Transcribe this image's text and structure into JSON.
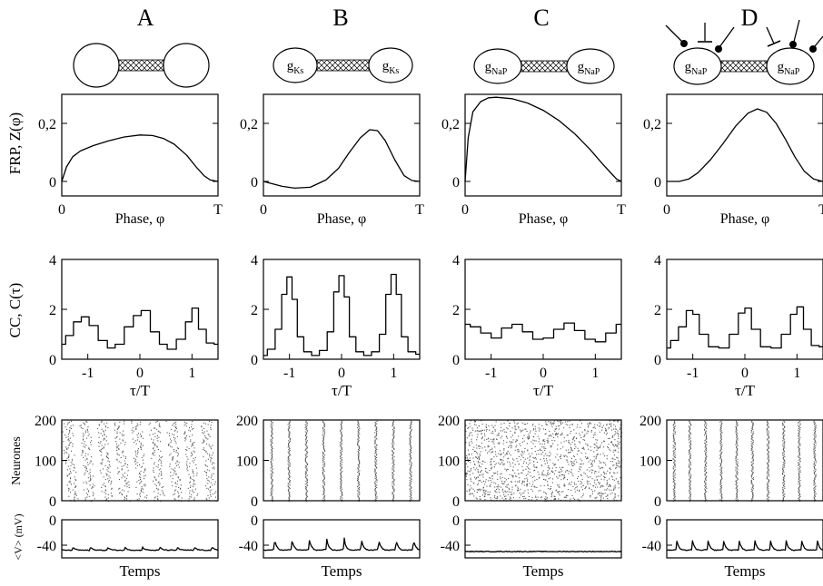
{
  "figure": {
    "panel_letters": [
      "A",
      "B",
      "C",
      "D"
    ],
    "schematic_labels": [
      "",
      "g",
      "g",
      "g"
    ],
    "schematic_subscripts": [
      "",
      "Ks",
      "NaP",
      "NaP"
    ]
  },
  "chart_data": [
    {
      "name": "FRP",
      "type": "line",
      "ylabel": "FRP,  Z(φ)",
      "xlabel": "Phase, φ",
      "xticks": [
        "0",
        "T"
      ],
      "yticks": [
        "0",
        "0,2"
      ],
      "xlim": [
        0,
        1
      ],
      "ylim": [
        -0.05,
        0.3
      ],
      "series": [
        {
          "x": [
            0,
            0.03,
            0.07,
            0.12,
            0.2,
            0.3,
            0.4,
            0.5,
            0.58,
            0.65,
            0.72,
            0.8,
            0.86,
            0.91,
            0.95,
            1.0
          ],
          "y": [
            0,
            0.05,
            0.085,
            0.105,
            0.123,
            0.14,
            0.153,
            0.16,
            0.158,
            0.148,
            0.128,
            0.09,
            0.05,
            0.02,
            0.005,
            0
          ]
        },
        {
          "x": [
            0,
            0.05,
            0.12,
            0.2,
            0.3,
            0.4,
            0.48,
            0.55,
            0.62,
            0.68,
            0.73,
            0.78,
            0.84,
            0.9,
            0.95,
            1.0
          ],
          "y": [
            0,
            -0.007,
            -0.017,
            -0.023,
            -0.02,
            0.005,
            0.045,
            0.1,
            0.15,
            0.178,
            0.175,
            0.14,
            0.075,
            0.02,
            0.003,
            0
          ]
        },
        {
          "x": [
            0,
            0.02,
            0.05,
            0.1,
            0.15,
            0.2,
            0.3,
            0.4,
            0.5,
            0.6,
            0.7,
            0.8,
            0.88,
            0.94,
            0.97,
            1.0
          ],
          "y": [
            0,
            0.15,
            0.24,
            0.275,
            0.288,
            0.29,
            0.285,
            0.27,
            0.245,
            0.21,
            0.165,
            0.11,
            0.06,
            0.025,
            0.008,
            0
          ]
        },
        {
          "x": [
            0,
            0.08,
            0.14,
            0.2,
            0.28,
            0.36,
            0.44,
            0.52,
            0.58,
            0.64,
            0.7,
            0.76,
            0.82,
            0.88,
            0.94,
            1.0
          ],
          "y": [
            0,
            0,
            0.008,
            0.03,
            0.075,
            0.13,
            0.19,
            0.235,
            0.25,
            0.238,
            0.2,
            0.145,
            0.085,
            0.035,
            0.008,
            0
          ]
        }
      ]
    },
    {
      "name": "CC",
      "type": "line",
      "ylabel": "CC,  C(τ)",
      "xlabel": "τ/T",
      "xticks": [
        "-1",
        "0",
        "1"
      ],
      "yticks": [
        "0",
        "2",
        "4"
      ],
      "xlim": [
        -1.5,
        1.5
      ],
      "ylim": [
        0,
        4
      ],
      "series": [
        {
          "x": [
            -1.5,
            -1.35,
            -1.2,
            -1.05,
            -0.9,
            -0.7,
            -0.55,
            -0.4,
            -0.2,
            -0.05,
            0.1,
            0.3,
            0.45,
            0.6,
            0.8,
            0.95,
            1.05,
            1.2,
            1.35,
            1.5
          ],
          "y": [
            0.6,
            0.95,
            1.5,
            1.7,
            1.35,
            0.75,
            0.45,
            0.6,
            1.3,
            1.75,
            1.95,
            1.1,
            0.6,
            0.4,
            0.8,
            1.5,
            2.05,
            1.2,
            0.65,
            0.6
          ]
        },
        {
          "x": [
            -1.5,
            -1.35,
            -1.2,
            -1.1,
            -1.0,
            -0.9,
            -0.8,
            -0.65,
            -0.5,
            -0.35,
            -0.2,
            -0.1,
            0.0,
            0.1,
            0.2,
            0.35,
            0.5,
            0.65,
            0.8,
            0.9,
            1.0,
            1.1,
            1.2,
            1.35,
            1.5
          ],
          "y": [
            0.15,
            0.4,
            1.2,
            2.6,
            3.3,
            2.4,
            0.9,
            0.3,
            0.15,
            0.35,
            1.1,
            2.7,
            3.35,
            2.5,
            0.9,
            0.3,
            0.15,
            0.3,
            1.0,
            2.6,
            3.4,
            2.6,
            0.9,
            0.3,
            0.2
          ]
        },
        {
          "x": [
            -1.5,
            -1.3,
            -1.1,
            -0.9,
            -0.7,
            -0.5,
            -0.3,
            -0.1,
            0.1,
            0.3,
            0.5,
            0.7,
            0.9,
            1.1,
            1.3,
            1.5
          ],
          "y": [
            1.4,
            1.3,
            1.05,
            0.85,
            1.25,
            1.4,
            1.1,
            0.8,
            0.85,
            1.2,
            1.45,
            1.15,
            0.8,
            0.7,
            1.05,
            1.4
          ]
        },
        {
          "x": [
            -1.5,
            -1.35,
            -1.2,
            -1.05,
            -0.95,
            -0.8,
            -0.6,
            -0.4,
            -0.2,
            -0.05,
            0.05,
            0.2,
            0.4,
            0.6,
            0.8,
            0.95,
            1.05,
            1.2,
            1.35,
            1.5
          ],
          "y": [
            0.45,
            0.75,
            1.3,
            1.95,
            1.8,
            1.0,
            0.5,
            0.45,
            1.0,
            1.85,
            2.05,
            1.2,
            0.5,
            0.45,
            1.0,
            1.8,
            2.1,
            1.2,
            0.55,
            0.5
          ]
        }
      ]
    },
    {
      "name": "raster",
      "type": "scatter",
      "ylabel": "Neurones",
      "yticks": [
        "0",
        "100",
        "200"
      ],
      "ylim": [
        0,
        200
      ],
      "n_neurons": 200,
      "bursts": [
        9,
        9,
        0,
        10
      ],
      "sync": [
        "loose",
        "tight",
        "none",
        "tight"
      ]
    },
    {
      "name": "potential",
      "type": "line",
      "ylabel": "<V> (mV)",
      "xlabel": "Temps",
      "yticks": [
        "0",
        "-40"
      ],
      "ylim": [
        -60,
        0
      ],
      "baseline": [
        -48,
        -47,
        -50,
        -47
      ],
      "spike_height": [
        5,
        18,
        1,
        17
      ],
      "spikes": [
        9,
        9,
        0,
        10
      ]
    }
  ]
}
